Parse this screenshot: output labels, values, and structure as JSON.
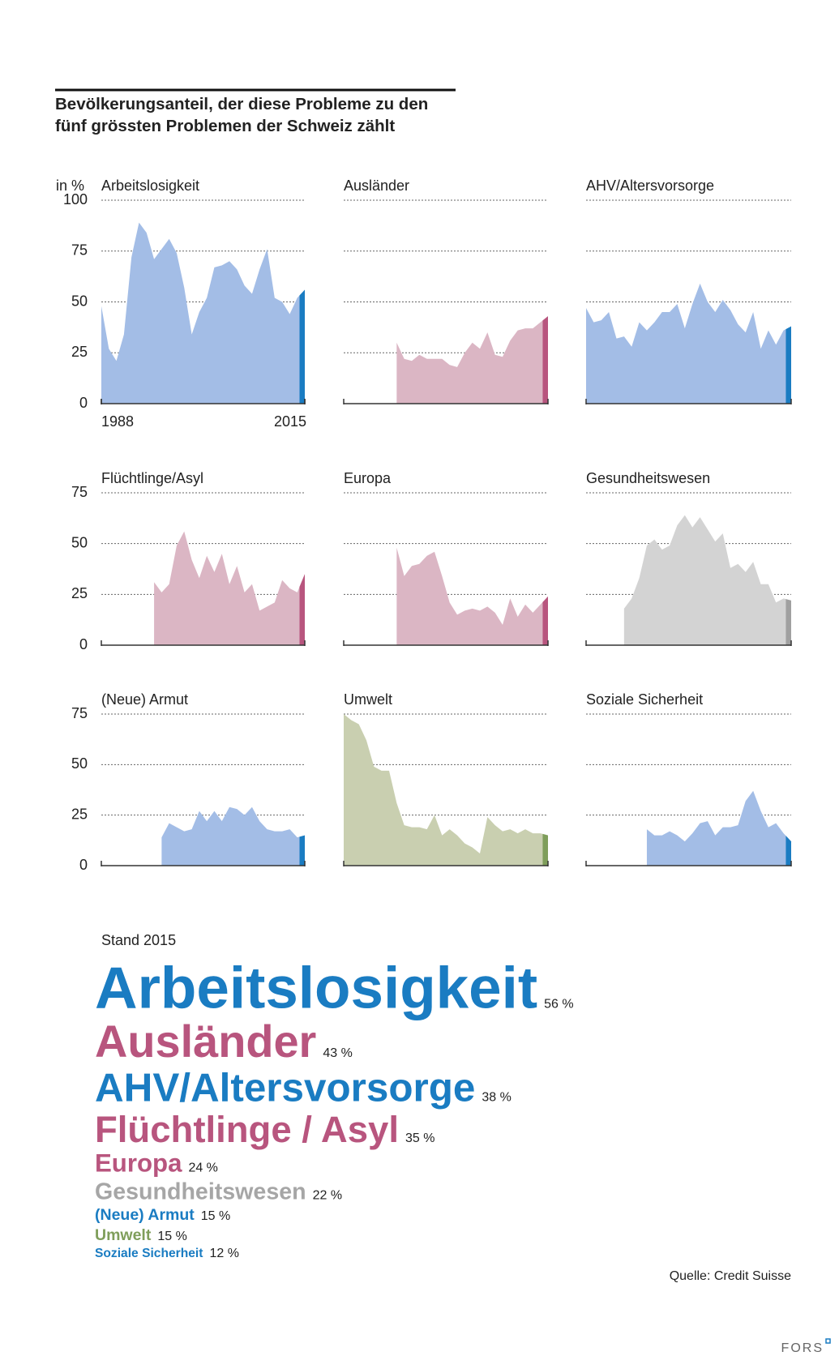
{
  "title": [
    "Bevölkerungsanteil, der diese Probleme zu den",
    "fünf grössten Problemen der Schweiz zählt"
  ],
  "y_unit": "in %",
  "chart_data": [
    {
      "type": "area",
      "title": "Arbeitslosigkeit",
      "color": "#a3bde6",
      "highlight_color": "#1a7cc2",
      "x": [
        1988,
        1989,
        1990,
        1991,
        1992,
        1993,
        1994,
        1995,
        1996,
        1997,
        1998,
        1999,
        2000,
        2001,
        2002,
        2003,
        2004,
        2005,
        2006,
        2007,
        2008,
        2009,
        2010,
        2011,
        2012,
        2013,
        2014,
        2015
      ],
      "values": [
        48,
        27,
        21,
        34,
        72,
        89,
        84,
        71,
        76,
        81,
        74,
        57,
        34,
        45,
        52,
        67,
        68,
        70,
        66,
        58,
        54,
        66,
        76,
        52,
        50,
        44,
        52,
        56
      ],
      "xlim": [
        1988,
        2015
      ],
      "xticks": [
        1988,
        2015
      ],
      "ylim": [
        0,
        100
      ],
      "yticks": [
        0,
        25,
        50,
        75,
        100
      ],
      "grid": true
    },
    {
      "type": "area",
      "title": "Ausländer",
      "color": "#dbb6c4",
      "highlight_color": "#b8557e",
      "x": [
        1988,
        1989,
        1990,
        1991,
        1992,
        1993,
        1994,
        1995,
        1996,
        1997,
        1998,
        1999,
        2000,
        2001,
        2002,
        2003,
        2004,
        2005,
        2006,
        2007,
        2008,
        2009,
        2010,
        2011,
        2012,
        2013,
        2014,
        2015
      ],
      "values": [
        null,
        null,
        null,
        null,
        null,
        null,
        null,
        30,
        22,
        21,
        24,
        22,
        22,
        22,
        19,
        18,
        25,
        30,
        27,
        35,
        24,
        23,
        31,
        36,
        37,
        37,
        40,
        43
      ],
      "xlim": [
        1988,
        2015
      ],
      "ylim": [
        0,
        100
      ],
      "yticks": [
        0,
        25,
        50,
        75,
        100
      ],
      "grid": true
    },
    {
      "type": "area",
      "title": "AHV/Altersvorsorge",
      "color": "#a3bde6",
      "highlight_color": "#1a7cc2",
      "x": [
        1988,
        1989,
        1990,
        1991,
        1992,
        1993,
        1994,
        1995,
        1996,
        1997,
        1998,
        1999,
        2000,
        2001,
        2002,
        2003,
        2004,
        2005,
        2006,
        2007,
        2008,
        2009,
        2010,
        2011,
        2012,
        2013,
        2014,
        2015
      ],
      "values": [
        47,
        40,
        41,
        45,
        32,
        33,
        28,
        40,
        36,
        40,
        45,
        45,
        49,
        37,
        49,
        59,
        50,
        45,
        51,
        46,
        39,
        35,
        45,
        27,
        36,
        29,
        36,
        38
      ],
      "xlim": [
        1988,
        2015
      ],
      "ylim": [
        0,
        100
      ],
      "yticks": [
        0,
        25,
        50,
        75,
        100
      ],
      "grid": true
    },
    {
      "type": "area",
      "title": "Flüchtlinge/Asyl",
      "color": "#dbb6c4",
      "highlight_color": "#b8557e",
      "x": [
        1988,
        1989,
        1990,
        1991,
        1992,
        1993,
        1994,
        1995,
        1996,
        1997,
        1998,
        1999,
        2000,
        2001,
        2002,
        2003,
        2004,
        2005,
        2006,
        2007,
        2008,
        2009,
        2010,
        2011,
        2012,
        2013,
        2014,
        2015
      ],
      "values": [
        null,
        null,
        null,
        null,
        null,
        null,
        null,
        31,
        26,
        30,
        49,
        56,
        42,
        33,
        44,
        36,
        45,
        30,
        39,
        26,
        30,
        17,
        19,
        21,
        32,
        28,
        26,
        35
      ],
      "xlim": [
        1988,
        2015
      ],
      "ylim": [
        0,
        75
      ],
      "yticks": [
        0,
        25,
        50,
        75
      ],
      "grid": true
    },
    {
      "type": "area",
      "title": "Europa",
      "color": "#dbb6c4",
      "highlight_color": "#b8557e",
      "x": [
        1988,
        1989,
        1990,
        1991,
        1992,
        1993,
        1994,
        1995,
        1996,
        1997,
        1998,
        1999,
        2000,
        2001,
        2002,
        2003,
        2004,
        2005,
        2006,
        2007,
        2008,
        2009,
        2010,
        2011,
        2012,
        2013,
        2014,
        2015
      ],
      "values": [
        null,
        null,
        null,
        null,
        null,
        null,
        null,
        48,
        34,
        39,
        40,
        44,
        46,
        34,
        21,
        15,
        17,
        18,
        17,
        19,
        16,
        10,
        23,
        14,
        20,
        16,
        20,
        24
      ],
      "xlim": [
        1988,
        2015
      ],
      "ylim": [
        0,
        75
      ],
      "yticks": [
        0,
        25,
        50,
        75
      ],
      "grid": true
    },
    {
      "type": "area",
      "title": "Gesundheitswesen",
      "color": "#d3d3d3",
      "highlight_color": "#a0a0a0",
      "x": [
        1988,
        1989,
        1990,
        1991,
        1992,
        1993,
        1994,
        1995,
        1996,
        1997,
        1998,
        1999,
        2000,
        2001,
        2002,
        2003,
        2004,
        2005,
        2006,
        2007,
        2008,
        2009,
        2010,
        2011,
        2012,
        2013,
        2014,
        2015
      ],
      "values": [
        null,
        null,
        null,
        null,
        null,
        18,
        23,
        33,
        49,
        52,
        47,
        49,
        59,
        64,
        58,
        63,
        57,
        51,
        55,
        38,
        40,
        36,
        41,
        30,
        30,
        21,
        23,
        22
      ],
      "xlim": [
        1988,
        2015
      ],
      "ylim": [
        0,
        75
      ],
      "yticks": [
        0,
        25,
        50,
        75
      ],
      "grid": true
    },
    {
      "type": "area",
      "title": "(Neue) Armut",
      "color": "#a3bde6",
      "highlight_color": "#1a7cc2",
      "x": [
        1988,
        1989,
        1990,
        1991,
        1992,
        1993,
        1994,
        1995,
        1996,
        1997,
        1998,
        1999,
        2000,
        2001,
        2002,
        2003,
        2004,
        2005,
        2006,
        2007,
        2008,
        2009,
        2010,
        2011,
        2012,
        2013,
        2014,
        2015
      ],
      "values": [
        null,
        null,
        null,
        null,
        null,
        null,
        null,
        null,
        14,
        21,
        19,
        17,
        18,
        27,
        22,
        27,
        22,
        29,
        28,
        25,
        29,
        22,
        18,
        17,
        17,
        18,
        14,
        15
      ],
      "xlim": [
        1988,
        2015
      ],
      "ylim": [
        0,
        75
      ],
      "yticks": [
        0,
        25,
        50,
        75
      ],
      "grid": true
    },
    {
      "type": "area",
      "title": "Umwelt",
      "color": "#c9cfb0",
      "highlight_color": "#7f9e5b",
      "x": [
        1988,
        1989,
        1990,
        1991,
        1992,
        1993,
        1994,
        1995,
        1996,
        1997,
        1998,
        1999,
        2000,
        2001,
        2002,
        2003,
        2004,
        2005,
        2006,
        2007,
        2008,
        2009,
        2010,
        2011,
        2012,
        2013,
        2014,
        2015
      ],
      "values": [
        75,
        72,
        70,
        62,
        49,
        47,
        47,
        31,
        20,
        19,
        19,
        18,
        25,
        15,
        18,
        15,
        11,
        9,
        6,
        24,
        20,
        17,
        18,
        16,
        18,
        16,
        16,
        15
      ],
      "xlim": [
        1988,
        2015
      ],
      "ylim": [
        0,
        75
      ],
      "yticks": [
        0,
        25,
        50,
        75
      ],
      "grid": true
    },
    {
      "type": "area",
      "title": "Soziale Sicherheit",
      "color": "#a3bde6",
      "highlight_color": "#1a7cc2",
      "x": [
        1988,
        1989,
        1990,
        1991,
        1992,
        1993,
        1994,
        1995,
        1996,
        1997,
        1998,
        1999,
        2000,
        2001,
        2002,
        2003,
        2004,
        2005,
        2006,
        2007,
        2008,
        2009,
        2010,
        2011,
        2012,
        2013,
        2014,
        2015
      ],
      "values": [
        null,
        null,
        null,
        null,
        null,
        null,
        null,
        null,
        18,
        15,
        15,
        17,
        15,
        12,
        16,
        21,
        22,
        15,
        19,
        19,
        20,
        32,
        37,
        27,
        19,
        21,
        16,
        12
      ],
      "xlim": [
        1988,
        2015
      ],
      "ylim": [
        0,
        75
      ],
      "yticks": [
        0,
        25,
        50,
        75
      ],
      "grid": true
    }
  ],
  "ranking": {
    "title": "Stand 2015",
    "items": [
      {
        "name": "Arbeitslosigkeit",
        "value": 56,
        "label": "56 %",
        "color": "#1a7cc2"
      },
      {
        "name": "Ausländer",
        "value": 43,
        "label": "43 %",
        "color": "#b8557e"
      },
      {
        "name": "AHV/Altersvorsorge",
        "value": 38,
        "label": "38 %",
        "color": "#1a7cc2"
      },
      {
        "name": "Flüchtlinge / Asyl",
        "value": 35,
        "label": "35 %",
        "color": "#b8557e"
      },
      {
        "name": "Europa",
        "value": 24,
        "label": "24 %",
        "color": "#b8557e"
      },
      {
        "name": "Gesundheitswesen",
        "value": 22,
        "label": "22 %",
        "color": "#a6a6a6"
      },
      {
        "name": "(Neue) Armut",
        "value": 15,
        "label": "15 %",
        "color": "#1a7cc2"
      },
      {
        "name": "Umwelt",
        "value": 15,
        "label": "15 %",
        "color": "#7f9e5b"
      },
      {
        "name": "Soziale Sicherheit",
        "value": 12,
        "label": "12 %",
        "color": "#1a7cc2"
      }
    ]
  },
  "source": "Quelle: Credit Suisse",
  "logo": "FORS"
}
